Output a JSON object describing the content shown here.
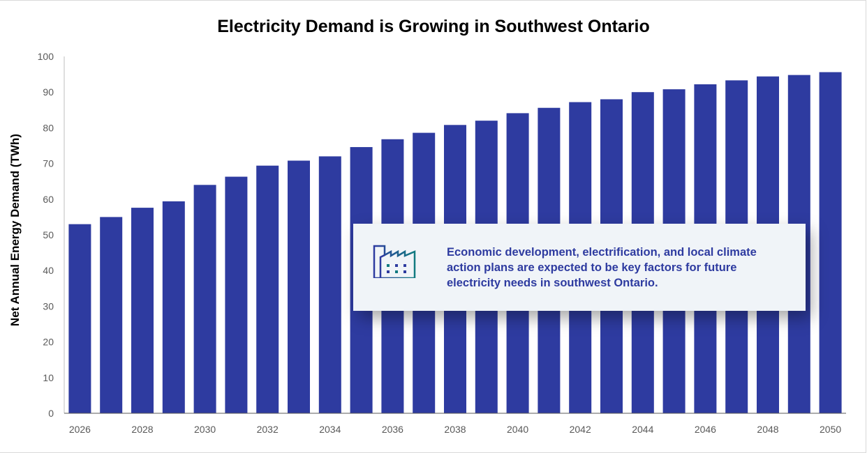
{
  "chart_data": {
    "type": "bar",
    "title": "Electricity Demand is Growing in Southwest Ontario",
    "xlabel": "",
    "ylabel": "Net Annual Energy Demand (TWh)",
    "ylim": [
      0,
      100
    ],
    "yticks": [
      0,
      10,
      20,
      30,
      40,
      50,
      60,
      70,
      80,
      90,
      100
    ],
    "xtick_labels": [
      "2026",
      "2028",
      "2030",
      "2032",
      "2034",
      "2036",
      "2038",
      "2040",
      "2042",
      "2044",
      "2046",
      "2048",
      "2050"
    ],
    "categories": [
      "2026",
      "2027",
      "2028",
      "2029",
      "2030",
      "2031",
      "2032",
      "2033",
      "2034",
      "2035",
      "2036",
      "2037",
      "2038",
      "2039",
      "2040",
      "2041",
      "2042",
      "2043",
      "2044",
      "2045",
      "2046",
      "2047",
      "2048",
      "2049",
      "2050"
    ],
    "values": [
      53,
      55,
      57.6,
      59.4,
      64,
      66.3,
      69.4,
      70.8,
      72,
      74.6,
      76.8,
      78.6,
      80.8,
      82,
      84.1,
      85.6,
      87.2,
      88,
      90,
      90.8,
      92.2,
      93.3,
      94.4,
      94.8,
      95.6
    ],
    "bar_color": "#2e3ba0",
    "grid": false,
    "annotation": "Economic development, electrification, and local climate action plans are expected to be key factors for future electricity needs in southwest Ontario.",
    "annotation_icon": "factory-icon"
  }
}
